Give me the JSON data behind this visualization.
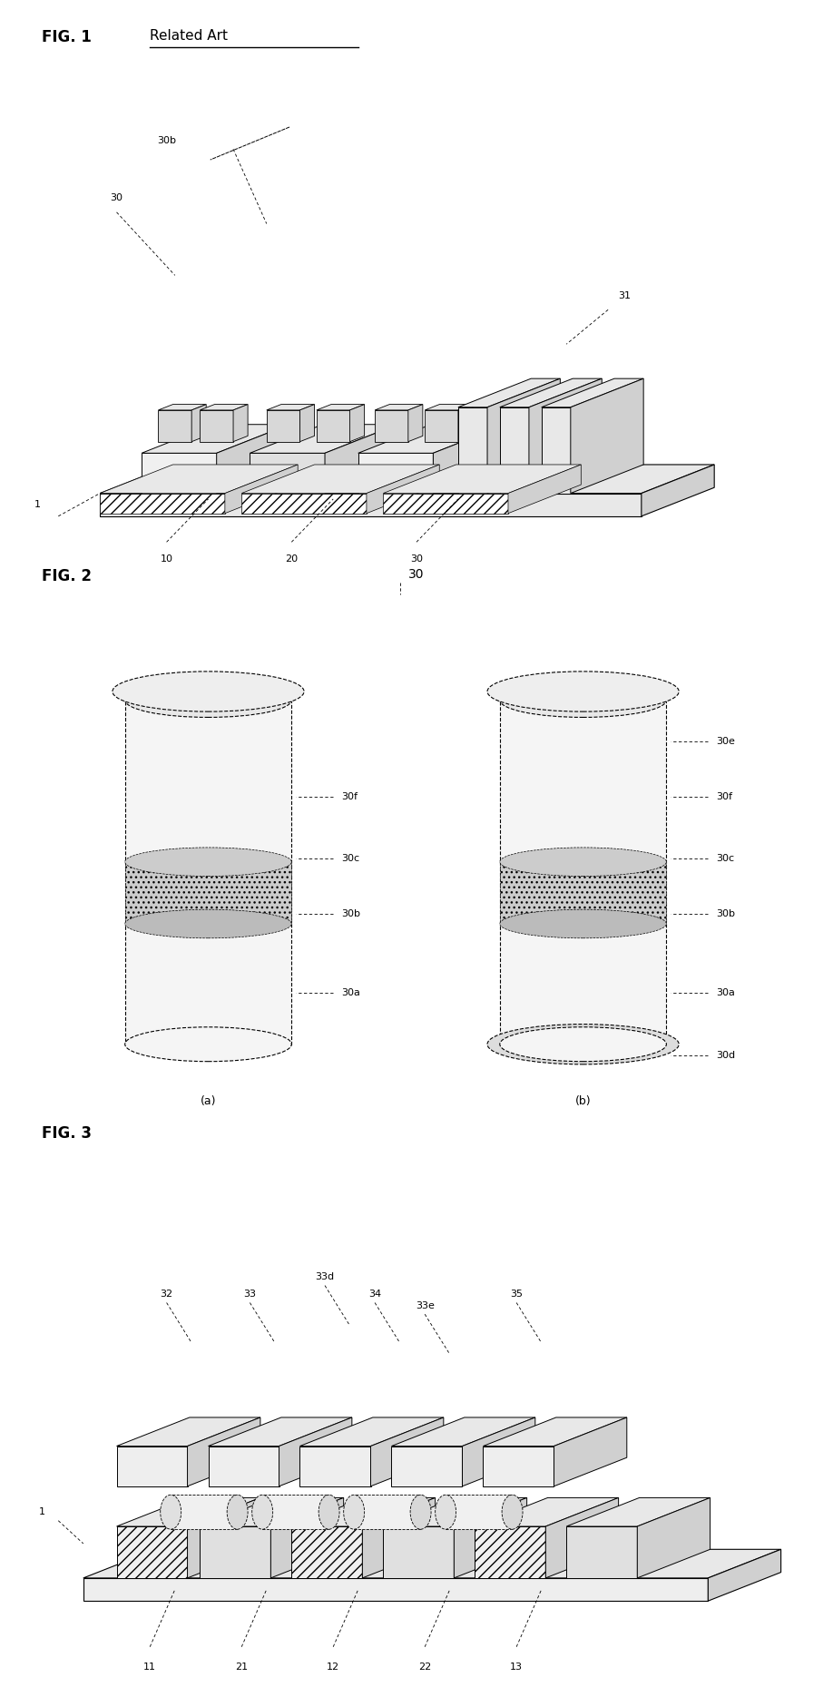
{
  "fig1_title": "FIG. 1",
  "fig1_subtitle": "Related Art",
  "fig2_title": "FIG. 2",
  "fig2_label": "30",
  "fig3_title": "FIG. 3",
  "bg_color": "#ffffff",
  "line_color": "#000000",
  "hatch_color": "#888888",
  "light_gray": "#dddddd",
  "medium_gray": "#bbbbbb",
  "dotted_fill": "#cccccc"
}
